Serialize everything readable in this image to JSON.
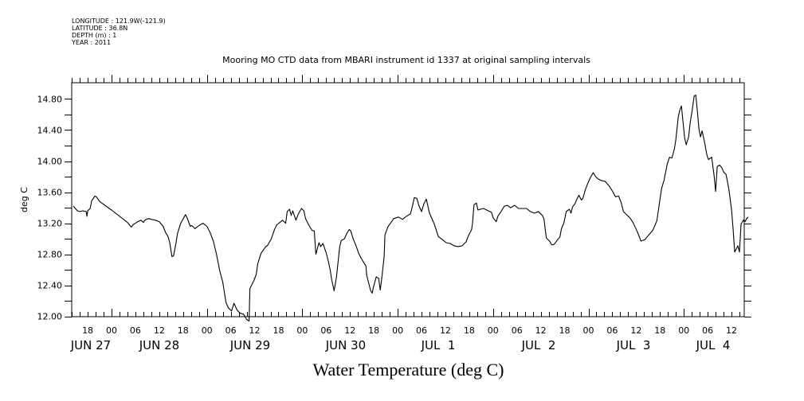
{
  "metadata": {
    "longitude": "LONGITUDE : 121.9W(-121.9)",
    "latitude": "LATITUDE : 36.8N",
    "depth": "DEPTH (m) : 1",
    "year": "YEAR : 2011"
  },
  "chart_data": {
    "type": "line",
    "title": "Mooring MO CTD data from MBARI instrument id 1337 at original sampling intervals",
    "bottom_title": "Water Temperature (deg C)",
    "xlabel": "",
    "ylabel": "deg C",
    "x_units": "hours since JUN 27 00:00 (2011)",
    "xlim": [
      14.0,
      183.0
    ],
    "ylim": [
      12.0,
      15.0
    ],
    "y_ticks": [
      12.0,
      12.2,
      12.4,
      12.6,
      12.8,
      13.0,
      13.2,
      13.4,
      13.6,
      13.8,
      14.0,
      14.2,
      14.4,
      14.6,
      14.8
    ],
    "y_tick_labels": [
      {
        "value": 12.0,
        "label": "12.00"
      },
      {
        "value": 12.4,
        "label": "12.40"
      },
      {
        "value": 12.8,
        "label": "12.80"
      },
      {
        "value": 13.2,
        "label": "13.20"
      },
      {
        "value": 13.6,
        "label": "13.60"
      },
      {
        "value": 14.0,
        "label": "14.00"
      },
      {
        "value": 14.4,
        "label": "14.40"
      },
      {
        "value": 14.8,
        "label": "14.80"
      }
    ],
    "x_hour_labels": [
      {
        "hour": 18,
        "label": "18"
      },
      {
        "hour": 24,
        "label": "00"
      },
      {
        "hour": 30,
        "label": "06"
      },
      {
        "hour": 36,
        "label": "12"
      },
      {
        "hour": 42,
        "label": "18"
      },
      {
        "hour": 48,
        "label": "00"
      },
      {
        "hour": 54,
        "label": "06"
      },
      {
        "hour": 60,
        "label": "12"
      },
      {
        "hour": 66,
        "label": "18"
      },
      {
        "hour": 72,
        "label": "00"
      },
      {
        "hour": 78,
        "label": "06"
      },
      {
        "hour": 84,
        "label": "12"
      },
      {
        "hour": 90,
        "label": "18"
      },
      {
        "hour": 96,
        "label": "00"
      },
      {
        "hour": 102,
        "label": "06"
      },
      {
        "hour": 108,
        "label": "12"
      },
      {
        "hour": 114,
        "label": "18"
      },
      {
        "hour": 120,
        "label": "00"
      },
      {
        "hour": 126,
        "label": "06"
      },
      {
        "hour": 132,
        "label": "12"
      },
      {
        "hour": 138,
        "label": "18"
      },
      {
        "hour": 144,
        "label": "00"
      },
      {
        "hour": 150,
        "label": "06"
      },
      {
        "hour": 156,
        "label": "12"
      },
      {
        "hour": 162,
        "label": "18"
      },
      {
        "hour": 168,
        "label": "00"
      },
      {
        "hour": 174,
        "label": "06"
      },
      {
        "hour": 180,
        "label": "12"
      }
    ],
    "x_day_labels": [
      {
        "hour": 3,
        "label": "JUN 27"
      },
      {
        "hour": 36,
        "label": "JUN 28"
      },
      {
        "hour": 60,
        "label": "JUN 29"
      },
      {
        "hour": 84,
        "label": "JUN 30"
      },
      {
        "hour": 108,
        "label": "JUL  1"
      },
      {
        "hour": 132,
        "label": "JUL  2"
      },
      {
        "hour": 156,
        "label": "JUL  3"
      },
      {
        "hour": 176,
        "label": "JUL  4"
      }
    ],
    "grid": false,
    "series": [
      {
        "name": "Water Temperature",
        "color": "#000000",
        "points": [
          [
            14.4,
            13.42
          ],
          [
            15.4,
            13.36
          ],
          [
            16.0,
            13.35
          ],
          [
            16.8,
            13.36
          ],
          [
            17.6,
            13.35
          ],
          [
            17.8,
            13.29
          ],
          [
            18.0,
            13.36
          ],
          [
            18.6,
            13.39
          ],
          [
            19.0,
            13.49
          ],
          [
            19.4,
            13.52
          ],
          [
            19.8,
            13.55
          ],
          [
            20.2,
            13.54
          ],
          [
            20.6,
            13.51
          ],
          [
            21.0,
            13.48
          ],
          [
            24.0,
            13.37
          ],
          [
            28.0,
            13.21
          ],
          [
            29.0,
            13.15
          ],
          [
            29.4,
            13.18
          ],
          [
            30.0,
            13.2
          ],
          [
            30.6,
            13.22
          ],
          [
            31.4,
            13.24
          ],
          [
            32.0,
            13.21
          ],
          [
            32.4,
            13.24
          ],
          [
            33.2,
            13.26
          ],
          [
            34.0,
            13.25
          ],
          [
            35.0,
            13.24
          ],
          [
            36.0,
            13.22
          ],
          [
            37.0,
            13.16
          ],
          [
            37.6,
            13.08
          ],
          [
            38.2,
            13.03
          ],
          [
            38.6,
            12.96
          ],
          [
            39.2,
            12.77
          ],
          [
            39.6,
            12.78
          ],
          [
            40.2,
            12.94
          ],
          [
            40.6,
            13.07
          ],
          [
            41.4,
            13.2
          ],
          [
            42.6,
            13.31
          ],
          [
            43.0,
            13.27
          ],
          [
            43.8,
            13.16
          ],
          [
            44.2,
            13.17
          ],
          [
            45.0,
            13.13
          ],
          [
            46.0,
            13.17
          ],
          [
            47.0,
            13.2
          ],
          [
            48.0,
            13.16
          ],
          [
            48.8,
            13.08
          ],
          [
            49.6,
            12.97
          ],
          [
            50.4,
            12.8
          ],
          [
            51.2,
            12.59
          ],
          [
            52.0,
            12.44
          ],
          [
            52.8,
            12.18
          ],
          [
            53.4,
            12.11
          ],
          [
            54.2,
            12.07
          ],
          [
            54.8,
            12.17
          ],
          [
            55.6,
            12.08
          ],
          [
            56.4,
            12.04
          ],
          [
            57.2,
            12.03
          ],
          [
            58.0,
            11.96
          ],
          [
            58.6,
            11.94
          ],
          [
            58.8,
            12.36
          ],
          [
            59.8,
            12.46
          ],
          [
            60.4,
            12.54
          ],
          [
            60.8,
            12.68
          ],
          [
            61.6,
            12.81
          ],
          [
            62.8,
            12.9
          ],
          [
            63.2,
            12.91
          ],
          [
            64.2,
            13.0
          ],
          [
            65.0,
            13.12
          ],
          [
            65.6,
            13.18
          ],
          [
            66.6,
            13.22
          ],
          [
            67.0,
            13.24
          ],
          [
            67.8,
            13.2
          ],
          [
            68.2,
            13.35
          ],
          [
            68.8,
            13.38
          ],
          [
            69.2,
            13.3
          ],
          [
            69.6,
            13.36
          ],
          [
            70.0,
            13.3
          ],
          [
            70.4,
            13.24
          ],
          [
            71.0,
            13.32
          ],
          [
            71.8,
            13.39
          ],
          [
            72.4,
            13.36
          ],
          [
            72.8,
            13.26
          ],
          [
            73.6,
            13.18
          ],
          [
            74.4,
            13.11
          ],
          [
            75.0,
            13.1
          ],
          [
            75.4,
            12.8
          ],
          [
            76.2,
            12.95
          ],
          [
            76.6,
            12.9
          ],
          [
            77.2,
            12.94
          ],
          [
            78.0,
            12.82
          ],
          [
            78.6,
            12.7
          ],
          [
            79.0,
            12.6
          ],
          [
            79.4,
            12.47
          ],
          [
            80.0,
            12.33
          ],
          [
            80.6,
            12.51
          ],
          [
            81.2,
            12.8
          ],
          [
            81.4,
            12.9
          ],
          [
            81.8,
            12.98
          ],
          [
            82.6,
            13.0
          ],
          [
            83.2,
            13.07
          ],
          [
            83.8,
            13.12
          ],
          [
            84.2,
            13.1
          ],
          [
            84.8,
            13.0
          ],
          [
            85.6,
            12.9
          ],
          [
            86.2,
            12.81
          ],
          [
            86.8,
            12.75
          ],
          [
            88.0,
            12.65
          ],
          [
            88.2,
            12.53
          ],
          [
            88.8,
            12.41
          ],
          [
            89.2,
            12.33
          ],
          [
            89.6,
            12.3
          ],
          [
            89.8,
            12.36
          ],
          [
            90.6,
            12.51
          ],
          [
            91.2,
            12.49
          ],
          [
            91.6,
            12.34
          ],
          [
            92.0,
            12.49
          ],
          [
            92.6,
            12.77
          ],
          [
            92.8,
            13.05
          ],
          [
            93.6,
            13.16
          ],
          [
            94.2,
            13.2
          ],
          [
            95.0,
            13.26
          ],
          [
            96.2,
            13.28
          ],
          [
            97.2,
            13.25
          ],
          [
            98.2,
            13.29
          ],
          [
            99.2,
            13.32
          ],
          [
            99.6,
            13.4
          ],
          [
            100.2,
            13.53
          ],
          [
            100.8,
            13.52
          ],
          [
            101.4,
            13.42
          ],
          [
            102.0,
            13.35
          ],
          [
            102.6,
            13.45
          ],
          [
            103.2,
            13.51
          ],
          [
            104.0,
            13.33
          ],
          [
            105.2,
            13.19
          ],
          [
            106.2,
            13.03
          ],
          [
            107.2,
            12.99
          ],
          [
            108.2,
            12.95
          ],
          [
            109.2,
            12.94
          ],
          [
            110.2,
            12.91
          ],
          [
            111.2,
            12.9
          ],
          [
            112.2,
            12.91
          ],
          [
            113.2,
            12.96
          ],
          [
            113.8,
            13.04
          ],
          [
            114.6,
            13.12
          ],
          [
            114.8,
            13.19
          ],
          [
            115.2,
            13.44
          ],
          [
            115.8,
            13.46
          ],
          [
            116.2,
            13.37
          ],
          [
            116.8,
            13.38
          ],
          [
            117.6,
            13.39
          ],
          [
            118.8,
            13.36
          ],
          [
            119.6,
            13.34
          ],
          [
            120.0,
            13.27
          ],
          [
            120.8,
            13.22
          ],
          [
            121.2,
            13.29
          ],
          [
            122.0,
            13.35
          ],
          [
            122.8,
            13.42
          ],
          [
            123.6,
            13.43
          ],
          [
            124.4,
            13.4
          ],
          [
            125.4,
            13.43
          ],
          [
            126.4,
            13.39
          ],
          [
            127.4,
            13.39
          ],
          [
            128.4,
            13.39
          ],
          [
            129.4,
            13.35
          ],
          [
            130.4,
            13.33
          ],
          [
            131.4,
            13.35
          ],
          [
            132.4,
            13.3
          ],
          [
            132.8,
            13.26
          ],
          [
            133.4,
            13.01
          ],
          [
            134.2,
            12.97
          ],
          [
            134.8,
            12.92
          ],
          [
            135.4,
            12.93
          ],
          [
            136.4,
            13.0
          ],
          [
            136.8,
            13.02
          ],
          [
            137.2,
            13.13
          ],
          [
            137.8,
            13.2
          ],
          [
            138.4,
            13.35
          ],
          [
            139.2,
            13.38
          ],
          [
            139.6,
            13.33
          ],
          [
            140.0,
            13.41
          ],
          [
            140.6,
            13.45
          ],
          [
            141.0,
            13.5
          ],
          [
            141.6,
            13.56
          ],
          [
            142.2,
            13.5
          ],
          [
            142.6,
            13.52
          ],
          [
            143.2,
            13.63
          ],
          [
            143.8,
            13.71
          ],
          [
            144.6,
            13.8
          ],
          [
            145.2,
            13.85
          ],
          [
            145.8,
            13.8
          ],
          [
            146.4,
            13.77
          ],
          [
            147.2,
            13.75
          ],
          [
            148.2,
            13.74
          ],
          [
            149.2,
            13.68
          ],
          [
            150.2,
            13.6
          ],
          [
            150.8,
            13.54
          ],
          [
            151.6,
            13.55
          ],
          [
            152.2,
            13.47
          ],
          [
            152.8,
            13.35
          ],
          [
            153.4,
            13.32
          ],
          [
            154.4,
            13.27
          ],
          [
            155.2,
            13.21
          ],
          [
            156.4,
            13.08
          ],
          [
            157.2,
            12.97
          ],
          [
            158.2,
            12.99
          ],
          [
            159.2,
            13.05
          ],
          [
            160.2,
            13.11
          ],
          [
            161.2,
            13.23
          ],
          [
            161.8,
            13.44
          ],
          [
            162.4,
            13.65
          ],
          [
            163.0,
            13.75
          ],
          [
            163.8,
            13.96
          ],
          [
            164.4,
            14.05
          ],
          [
            165.0,
            14.04
          ],
          [
            165.6,
            14.15
          ],
          [
            166.0,
            14.28
          ],
          [
            166.6,
            14.57
          ],
          [
            167.0,
            14.66
          ],
          [
            167.4,
            14.71
          ],
          [
            167.8,
            14.5
          ],
          [
            168.2,
            14.3
          ],
          [
            168.6,
            14.21
          ],
          [
            169.2,
            14.31
          ],
          [
            169.6,
            14.5
          ],
          [
            170.0,
            14.62
          ],
          [
            170.6,
            14.84
          ],
          [
            171.0,
            14.85
          ],
          [
            171.4,
            14.64
          ],
          [
            171.8,
            14.41
          ],
          [
            172.2,
            14.31
          ],
          [
            172.6,
            14.39
          ],
          [
            173.2,
            14.25
          ],
          [
            173.8,
            14.08
          ],
          [
            174.2,
            14.02
          ],
          [
            175.0,
            14.05
          ],
          [
            175.6,
            13.82
          ],
          [
            176.0,
            13.61
          ],
          [
            176.4,
            13.93
          ],
          [
            177.0,
            13.95
          ],
          [
            177.6,
            13.91
          ],
          [
            178.0,
            13.86
          ],
          [
            178.6,
            13.83
          ],
          [
            179.0,
            13.73
          ],
          [
            179.4,
            13.61
          ],
          [
            180.0,
            13.38
          ],
          [
            180.4,
            13.13
          ],
          [
            180.8,
            12.83
          ],
          [
            181.6,
            12.91
          ],
          [
            182.0,
            12.83
          ],
          [
            182.4,
            13.19
          ],
          [
            183.0,
            13.24
          ],
          [
            183.4,
            13.22
          ],
          [
            183.8,
            13.26
          ],
          [
            184.2,
            13.28
          ]
        ]
      }
    ]
  }
}
